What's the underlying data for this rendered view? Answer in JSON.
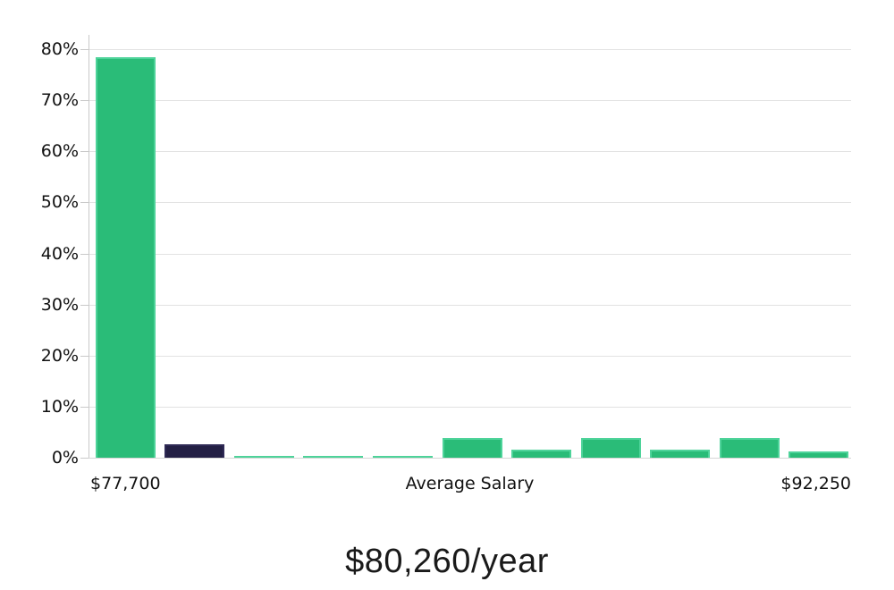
{
  "chart_data": {
    "type": "bar",
    "title": "$80,260/year",
    "values": [
      78.5,
      2.6,
      0.35,
      0.35,
      0.35,
      3.8,
      1.5,
      3.8,
      1.5,
      3.8,
      1.3
    ],
    "highlight_index": 1,
    "ylim": [
      0,
      80
    ],
    "yticks": [
      0,
      10,
      20,
      30,
      40,
      50,
      60,
      70,
      80
    ],
    "ytick_suffix": "%",
    "xtick_labels": [
      "$77,700",
      "Average Salary",
      "$92,250"
    ],
    "grid": "horizontal",
    "legend": "none",
    "colors": {
      "bar_fill": "#2abc78",
      "bar_border": "#4ed39a",
      "highlight_fill": "#231f44",
      "highlight_border": "#2f2a56",
      "gridline": "#e2e2e2",
      "axis": "#c9c9c9",
      "text": "#111111"
    }
  }
}
